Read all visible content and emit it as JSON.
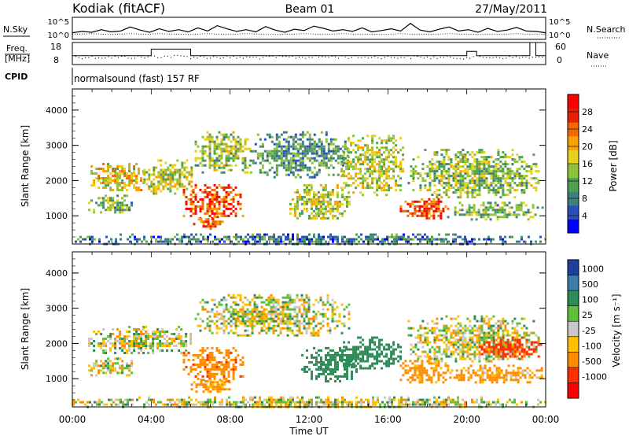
{
  "header": {
    "station": "Kodiak (fitACF)",
    "beam": "Beam 01",
    "date": "27/May/2011"
  },
  "chart_data": [
    {
      "type": "line",
      "panel": "noise",
      "left_label": "N.Sky",
      "right_label": "N.Search",
      "yticks_left": [
        "10^5",
        "10^0"
      ],
      "yticks_right": [
        "10^5",
        "10^0"
      ],
      "right_legend_style": "dotted",
      "series": [
        {
          "name": "N.Sky",
          "values": [
            1.5,
            1.8,
            1.6,
            2.2,
            1.7,
            1.9,
            2.8,
            2.1,
            1.6,
            2.4,
            1.8,
            2.2,
            1.7,
            2.6,
            1.9,
            3.1,
            2.4,
            1.8,
            2.2,
            1.7,
            2.9,
            2.1,
            1.6,
            2.3,
            2.0,
            3.0,
            2.5,
            1.9,
            2.2,
            1.8,
            2.6,
            1.7,
            2.0,
            2.4,
            1.9,
            3.6,
            2.1,
            1.7,
            2.3,
            2.8,
            1.9,
            2.2,
            1.6,
            2.5,
            1.8,
            2.1,
            2.7,
            1.9,
            1.8,
            1.5
          ]
        },
        {
          "name": "N.Search",
          "values": [
            1.2,
            1.2,
            1.3,
            1.2,
            1.1,
            1.2,
            1.3,
            1.2,
            1.2,
            1.3,
            1.2,
            1.2,
            1.1,
            1.2,
            1.3,
            1.2,
            1.2,
            1.2,
            1.3,
            1.2,
            1.2,
            1.1,
            1.2,
            1.2,
            1.3,
            1.2,
            1.2,
            1.2,
            1.3,
            1.2,
            1.2,
            1.2,
            1.1,
            1.2,
            1.3,
            1.2,
            1.2,
            1.2,
            1.2,
            1.3,
            1.2,
            1.2,
            1.1,
            1.2,
            1.2,
            1.2,
            1.3,
            1.2,
            1.2,
            1.2
          ]
        }
      ]
    },
    {
      "type": "line",
      "panel": "frequency",
      "left_label_top": "Freq.",
      "left_label_bottom": "[MHz]",
      "right_label": "Nave",
      "right_legend_style": "dotted",
      "yticks_left": [
        "18",
        "8"
      ],
      "yticks_right": [
        "60",
        "0"
      ],
      "ylim_left": [
        8,
        18
      ],
      "ylim_right": [
        0,
        60
      ],
      "series": [
        {
          "name": "Freq.",
          "x_hours": [
            0,
            4,
            4,
            6,
            6,
            20,
            20,
            20.5,
            20.5,
            23.2,
            23.2,
            23.5,
            23.5,
            24
          ],
          "values": [
            12,
            12,
            15,
            15,
            12,
            12,
            14,
            14,
            12,
            12,
            18,
            18,
            12,
            12
          ]
        },
        {
          "name": "Nave",
          "x_hours": [
            0,
            2,
            4,
            6,
            8,
            10,
            12,
            14,
            16,
            18,
            20,
            22,
            24
          ],
          "values": [
            20,
            20,
            22,
            20,
            19,
            20,
            21,
            20,
            20,
            19,
            20,
            19,
            20
          ]
        }
      ]
    },
    {
      "type": "table",
      "panel": "cpid",
      "label": "CPID",
      "segments": [
        {
          "text": "normalsound (fast) 157 RF",
          "start_hour": 0,
          "end_hour": 24
        }
      ]
    },
    {
      "type": "heatmap",
      "panel": "power",
      "ylabel": "Slant Range [km]",
      "yticks": [
        1000,
        2000,
        3000,
        4000
      ],
      "ylim": [
        200,
        4600
      ],
      "colorbar": {
        "label": "Power [dB]",
        "ticks": [
          4,
          8,
          12,
          16,
          20,
          24,
          28
        ],
        "colors": [
          "#0000ff",
          "#2a4fb8",
          "#3f7f7f",
          "#4fa04f",
          "#8fc23a",
          "#e6d21a",
          "#f5a300",
          "#f06a00",
          "#e62000",
          "#ff0000"
        ]
      },
      "regions": [
        {
          "x": [
            0.8,
            3.6
          ],
          "y": [
            1700,
            2500
          ],
          "value": 18
        },
        {
          "x": [
            0.8,
            3.0
          ],
          "y": [
            1100,
            1600
          ],
          "value": 12
        },
        {
          "x": [
            3.6,
            6.0
          ],
          "y": [
            1600,
            2600
          ],
          "value": 16
        },
        {
          "x": [
            5.6,
            8.6
          ],
          "y": [
            900,
            1900
          ],
          "value": 26
        },
        {
          "x": [
            6.0,
            7.6
          ],
          "y": [
            650,
            1000
          ],
          "value": 24
        },
        {
          "x": [
            6.2,
            9.0
          ],
          "y": [
            2200,
            3400
          ],
          "value": 14
        },
        {
          "x": [
            9.0,
            14.0
          ],
          "y": [
            2100,
            3400
          ],
          "value": 10
        },
        {
          "x": [
            11.0,
            14.0
          ],
          "y": [
            900,
            1900
          ],
          "value": 16
        },
        {
          "x": [
            13.6,
            16.8
          ],
          "y": [
            1600,
            3300
          ],
          "value": 16
        },
        {
          "x": [
            16.6,
            19.0
          ],
          "y": [
            900,
            1500
          ],
          "value": 26
        },
        {
          "x": [
            17.0,
            23.6
          ],
          "y": [
            1500,
            2900
          ],
          "value": 14
        },
        {
          "x": [
            19.0,
            23.8
          ],
          "y": [
            900,
            1400
          ],
          "value": 12
        },
        {
          "x": [
            0.0,
            24.0
          ],
          "y": [
            200,
            500
          ],
          "value": 8
        }
      ]
    },
    {
      "type": "heatmap",
      "panel": "velocity",
      "xlabel": "Time UT",
      "ylabel": "Slant Range [km]",
      "yticks": [
        1000,
        2000,
        3000,
        4000
      ],
      "ylim": [
        200,
        4600
      ],
      "xticks": [
        "00:00",
        "04:00",
        "08:00",
        "12:00",
        "16:00",
        "20:00",
        "00:00"
      ],
      "xlim_hours": [
        0,
        24
      ],
      "colorbar": {
        "label": "Velocity [m s⁻¹]",
        "ticks": [
          1000,
          500,
          100,
          25,
          -25,
          -100,
          -500,
          -1000
        ],
        "colors": [
          "#1e3f9c",
          "#3b7fa8",
          "#2e8b57",
          "#5fbf3a",
          "#c8c8c8",
          "#ffc000",
          "#ff8c00",
          "#ff3000",
          "#ff0000"
        ]
      },
      "regions": [
        {
          "x": [
            0.8,
            6.0
          ],
          "y": [
            1700,
            2500
          ],
          "value": 0
        },
        {
          "x": [
            0.8,
            3.0
          ],
          "y": [
            1100,
            1600
          ],
          "value": 0
        },
        {
          "x": [
            5.6,
            8.6
          ],
          "y": [
            900,
            1900
          ],
          "value": -400
        },
        {
          "x": [
            6.0,
            8.0
          ],
          "y": [
            650,
            1000
          ],
          "value": -200
        },
        {
          "x": [
            6.2,
            14.0
          ],
          "y": [
            2200,
            3400
          ],
          "value": 0
        },
        {
          "x": [
            11.6,
            14.4
          ],
          "y": [
            900,
            1900
          ],
          "value": 300
        },
        {
          "x": [
            13.6,
            16.6
          ],
          "y": [
            1300,
            2200
          ],
          "value": 300
        },
        {
          "x": [
            16.6,
            19.2
          ],
          "y": [
            900,
            1600
          ],
          "value": -200
        },
        {
          "x": [
            17.0,
            23.6
          ],
          "y": [
            1500,
            2800
          ],
          "value": 0
        },
        {
          "x": [
            19.2,
            23.8
          ],
          "y": [
            900,
            1400
          ],
          "value": -150
        },
        {
          "x": [
            20.6,
            23.8
          ],
          "y": [
            1600,
            2200
          ],
          "value": -600
        },
        {
          "x": [
            0.0,
            24.0
          ],
          "y": [
            200,
            500
          ],
          "value": 0
        }
      ]
    }
  ]
}
